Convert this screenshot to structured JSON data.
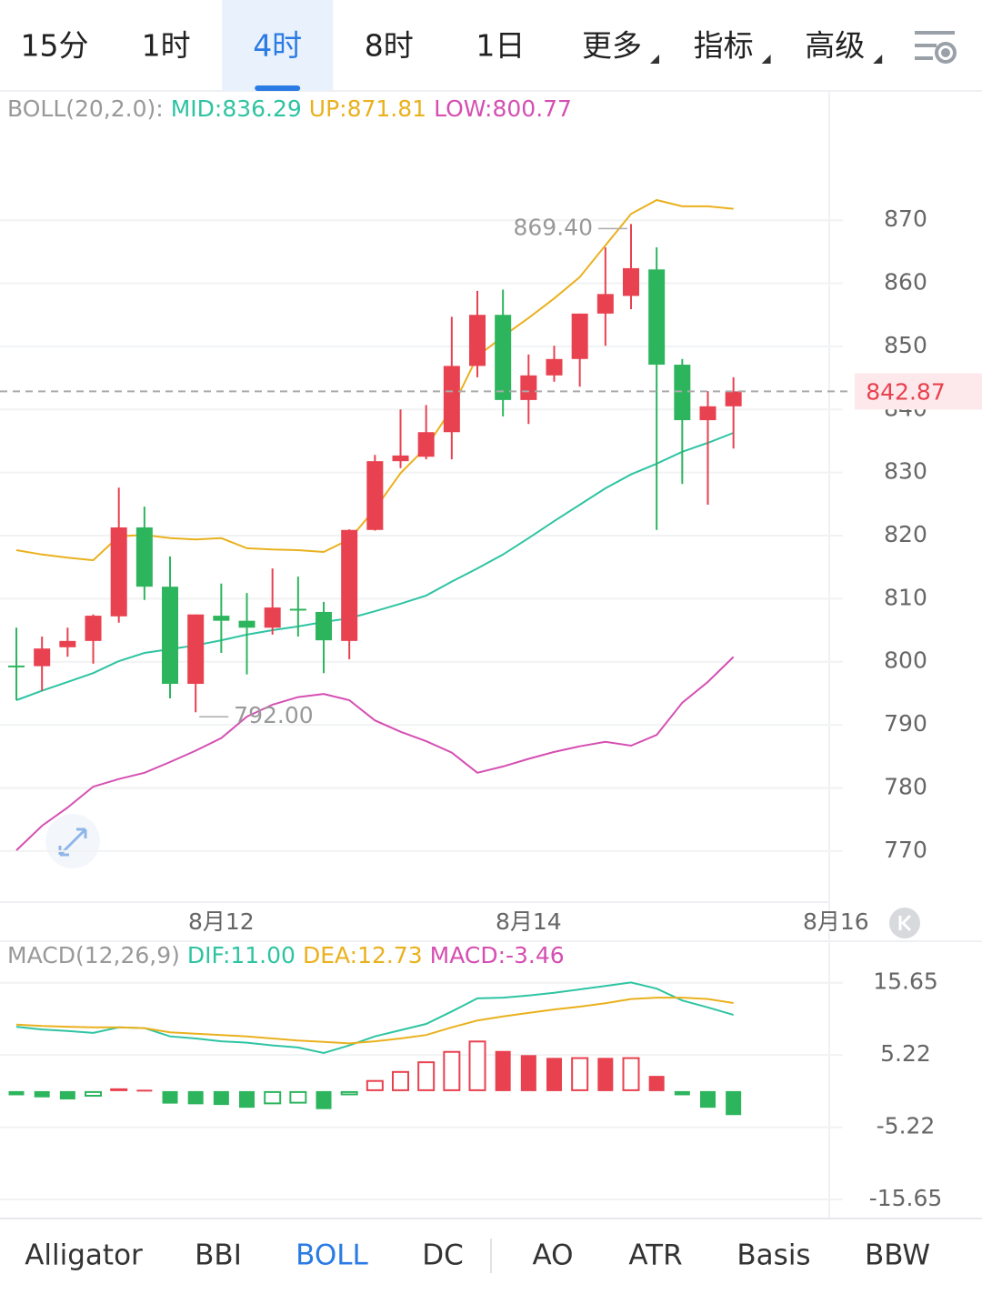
{
  "tabs": [
    "15分",
    "1时",
    "4时",
    "8时",
    "1日",
    "更多",
    "指标",
    "高级"
  ],
  "active_tab": 2,
  "chart_data": [
    {
      "type": "candlestick",
      "title": "BOLL(20,2.0):",
      "up_color": "#e8414f",
      "down_color": "#2db55d",
      "xlim": [
        -0.64,
        31.74
      ],
      "xticks": [
        {
          "value": 8,
          "label": "8月12"
        },
        {
          "value": 20,
          "label": "8月14"
        },
        {
          "value": 32,
          "label": "8月16"
        }
      ],
      "ylim": [
        761.9,
        890.5
      ],
      "yticks": [
        770,
        780,
        790,
        800,
        810,
        820,
        830,
        840,
        850,
        860,
        870
      ],
      "grid": true,
      "open": [
        799.4,
        799.3,
        802.3,
        803.3,
        807.2,
        821.3,
        811.9,
        796.5,
        807.3,
        806.5,
        805.4,
        808.4,
        807.9,
        803.3,
        820.9,
        831.8,
        832.5,
        836.4,
        846.9,
        855.0,
        841.5,
        845.4,
        848.0,
        855.2,
        858.0,
        862.2,
        847.1,
        838.3,
        840.5
      ],
      "high": [
        805.4,
        804.0,
        805.4,
        807.5,
        827.6,
        824.6,
        816.7,
        807.5,
        812.4,
        810.9,
        814.8,
        813.5,
        809.5,
        821.0,
        832.8,
        840.0,
        840.7,
        854.7,
        858.8,
        859.0,
        848.7,
        850.1,
        855.2,
        865.7,
        869.4,
        865.7,
        848.0,
        842.9,
        845.1
      ],
      "low": [
        793.9,
        795.4,
        800.8,
        799.7,
        806.2,
        809.8,
        794.2,
        792.0,
        801.4,
        798.0,
        804.3,
        804.0,
        798.2,
        800.4,
        820.8,
        830.7,
        832.1,
        832.1,
        845.1,
        838.9,
        837.7,
        844.4,
        843.6,
        850.1,
        855.9,
        820.9,
        828.2,
        824.9,
        833.8
      ],
      "close": [
        799.2,
        802.1,
        803.3,
        807.3,
        821.3,
        811.9,
        796.5,
        807.5,
        806.5,
        805.4,
        808.6,
        808.2,
        803.4,
        820.9,
        831.8,
        832.7,
        836.4,
        846.9,
        855.0,
        841.5,
        845.4,
        848.0,
        855.2,
        858.3,
        862.4,
        847.1,
        838.3,
        840.5,
        842.87
      ],
      "series": [
        {
          "name": "MID:836.29",
          "color": "#2ec4a2",
          "values": [
            793.9,
            795.4,
            796.8,
            798.2,
            800.1,
            801.4,
            802.0,
            802.6,
            803.4,
            804.3,
            805.0,
            805.6,
            806.3,
            806.9,
            808.0,
            809.2,
            810.5,
            812.7,
            814.8,
            817.0,
            819.6,
            822.3,
            824.9,
            827.5,
            829.7,
            831.4,
            833.3,
            834.7,
            836.29
          ]
        },
        {
          "name": "UP:871.81",
          "color": "#eab11e",
          "values": [
            817.7,
            817.0,
            816.5,
            816.1,
            819.9,
            820.1,
            819.6,
            819.4,
            819.6,
            818.0,
            817.8,
            817.7,
            817.4,
            819.4,
            824.2,
            829.9,
            834.0,
            840.1,
            848.4,
            851.6,
            854.5,
            857.6,
            861.0,
            866.0,
            871.0,
            873.2,
            872.2,
            872.2,
            871.81
          ]
        },
        {
          "name": "LOW:800.77",
          "color": "#d54fb2",
          "values": [
            770.1,
            774.0,
            776.9,
            780.2,
            781.4,
            782.4,
            784.1,
            785.9,
            787.9,
            791.3,
            793.2,
            794.4,
            794.9,
            793.9,
            790.7,
            788.9,
            787.4,
            785.6,
            782.4,
            783.4,
            784.6,
            785.7,
            786.6,
            787.3,
            786.7,
            788.4,
            793.5,
            796.8,
            800.77
          ]
        }
      ],
      "annotations": [
        {
          "text": "869.40",
          "x": 24,
          "y": 869.4,
          "side": "left"
        },
        {
          "text": "792.00",
          "x": 7,
          "y": 792.0,
          "side": "right"
        }
      ],
      "last_price": 842.87
    },
    {
      "type": "macd",
      "title": "MACD(12,26,9)",
      "xlim": [
        -0.64,
        31.74
      ],
      "ylim": [
        -18.4,
        21.0
      ],
      "yticks": [
        15.65,
        5.22,
        -5.22,
        -15.65
      ],
      "grid": true,
      "up_color": "#e8414f",
      "down_color": "#2db55d",
      "series": [
        {
          "name": "DIF:11.00",
          "color": "#2ec4a2",
          "values": [
            9.3,
            8.9,
            8.7,
            8.4,
            9.2,
            9.1,
            7.9,
            7.6,
            7.2,
            7.0,
            6.6,
            6.3,
            5.5,
            6.6,
            7.9,
            8.8,
            9.7,
            11.5,
            13.4,
            13.5,
            13.8,
            14.2,
            14.7,
            15.2,
            15.7,
            14.8,
            13.1,
            12.1,
            11.0
          ]
        },
        {
          "name": "DEA:12.73",
          "color": "#eab11e",
          "values": [
            9.6,
            9.4,
            9.3,
            9.2,
            9.2,
            9.1,
            8.5,
            8.3,
            8.1,
            7.9,
            7.6,
            7.3,
            7.1,
            6.9,
            7.2,
            7.6,
            8.1,
            9.2,
            10.2,
            10.8,
            11.3,
            11.8,
            12.2,
            12.7,
            13.3,
            13.5,
            13.5,
            13.3,
            12.73
          ]
        },
        {
          "name": "MACD:-3.46",
          "color": "#d54fb2",
          "values": [
            -0.6,
            -0.9,
            -1.2,
            -0.8,
            0.4,
            0.2,
            -1.8,
            -1.9,
            -2.0,
            -2.4,
            -1.9,
            -1.8,
            -2.6,
            -0.6,
            1.6,
            2.9,
            4.3,
            5.8,
            7.3,
            5.8,
            5.2,
            4.8,
            4.9,
            4.8,
            4.9,
            2.2,
            -0.6,
            -2.4,
            -3.46
          ]
        }
      ]
    }
  ],
  "indicators": [
    "Alligator",
    "BBI",
    "BOLL",
    "DC",
    "AO",
    "ATR",
    "Basis",
    "BBW"
  ],
  "active_indicator": 2
}
